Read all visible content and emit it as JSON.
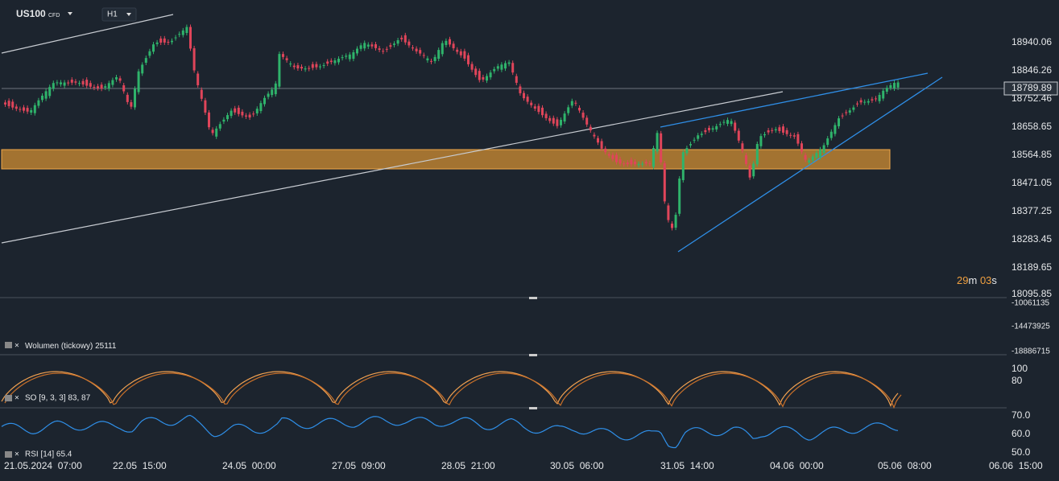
{
  "header": {
    "symbol": "US100",
    "kind": "CFD",
    "timeframe": "H1"
  },
  "price_axis": [
    "18940.06",
    "18846.26",
    "18789.89",
    "18752.46",
    "18658.65",
    "18564.85",
    "18471.05",
    "18377.25",
    "18283.45",
    "18189.65",
    "18095.85"
  ],
  "timer": {
    "minutes": "29",
    "m": "m",
    "seconds": "03",
    "s": "s"
  },
  "volume": {
    "label": "Wolumen",
    "kind": "(tickowy)",
    "value": "25111",
    "axis": [
      "-10061135",
      "-14473925",
      "-18886715"
    ]
  },
  "so": {
    "label": "SO [9, 3, 3] 83, 87",
    "axis": [
      "100",
      "80"
    ]
  },
  "rsi": {
    "label": "RSI [14] 65.4",
    "axis": [
      "70.0",
      "60.0",
      "50.0"
    ]
  },
  "time_axis": [
    "21.05.2024  07:00",
    "22.05  15:00",
    "24.05  00:00",
    "27.05  09:00",
    "28.05  21:00",
    "30.05  06:00",
    "31.05  14:00",
    "04.06  00:00",
    "05.06  08:00",
    "06.06  15:00"
  ]
}
